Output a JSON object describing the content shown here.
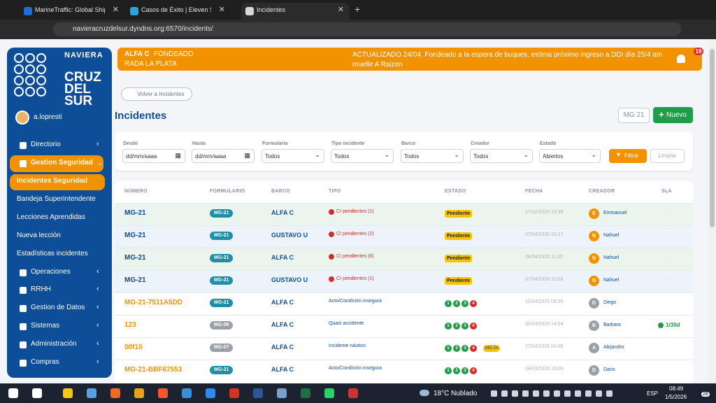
{
  "browser": {
    "tabs": [
      "MarineTraffic: Global Ship Track",
      "Casos de Éxito | Eleven Sistema",
      "Incidentes"
    ],
    "url": "navieracruzdelsur.dyndns.org:6570/incidents/"
  },
  "sidebar": {
    "brand": [
      "NAVIERA",
      "CRUZ",
      "DEL",
      "SUR"
    ],
    "user": "a.lopresti",
    "menu": [
      {
        "label": "Directorio",
        "kind": "section"
      },
      {
        "label": "Gestion Seguridad",
        "kind": "open"
      },
      {
        "label": "Incidentes Seguridad",
        "kind": "active"
      },
      {
        "label": "Bandeja Superintendente",
        "kind": "sub"
      },
      {
        "label": "Lecciones Aprendidas",
        "kind": "sub"
      },
      {
        "label": "Nueva lección",
        "kind": "sub"
      },
      {
        "label": "Estadísticas incidentes",
        "kind": "sub"
      },
      {
        "label": "Operaciones",
        "kind": "section"
      },
      {
        "label": "RRHH",
        "kind": "section"
      },
      {
        "label": "Gestion de Datos",
        "kind": "section"
      },
      {
        "label": "Sistemas",
        "kind": "section"
      },
      {
        "label": "Administración",
        "kind": "section"
      },
      {
        "label": "Compras",
        "kind": "section"
      }
    ]
  },
  "banner": {
    "ship": "ALFA C",
    "status": "FONDEADO",
    "location": "RADA LA PLATA",
    "message": "ACTUALIZADO 24/04, Fondeado a la espera de buques, estima próximo ingreso a DDI día 25/4 am muelle A Raizen",
    "badge": "19"
  },
  "page": {
    "back": "Volver a Incidentes",
    "title": "Incidentes",
    "form_button": "MG 21",
    "new_button": "Nuevo"
  },
  "filters": {
    "fields": [
      {
        "label": "Desde",
        "value": "dd/mm/aaaa"
      },
      {
        "label": "Hasta",
        "value": "dd/mm/aaaa"
      },
      {
        "label": "Formulario",
        "value": "Todos"
      },
      {
        "label": "Tipo incidente",
        "value": "Todos"
      },
      {
        "label": "Barco",
        "value": "Todos"
      },
      {
        "label": "Creador",
        "value": "Todos"
      },
      {
        "label": "Estado",
        "value": "Abiertos"
      }
    ],
    "filter_button": "Filtrar",
    "clear_button": "Limpiar"
  },
  "table": {
    "headers": [
      "NÚMERO",
      "FORMULARIO",
      "BARCO",
      "TIPO",
      "ESTADO",
      "FECHA",
      "CREADOR",
      "SLA"
    ],
    "rows": [
      {
        "number": "MG-21",
        "form": "MG-21",
        "ship": "ALFA C",
        "type": "CI pendientes (1)",
        "status": "Pendiente",
        "date": "17/12/2025 13:39",
        "initial": "E",
        "creator": "Emmanuel",
        "sla": "-"
      },
      {
        "number": "MG-21",
        "form": "MG-21",
        "ship": "GUSTAVO U",
        "type": "CI pendientes (2)",
        "status": "Pendiente",
        "date": "07/04/2026 10:17",
        "initial": "N",
        "creator": "Nahuel",
        "sla": "-"
      },
      {
        "number": "MG-21",
        "form": "MG-21",
        "ship": "ALFA C",
        "type": "CI pendientes (6)",
        "status": "Pendiente",
        "date": "08/04/2026 11:20",
        "initial": "N",
        "creator": "Nahuel",
        "sla": "-"
      },
      {
        "number": "MG-21",
        "form": "MG-21",
        "ship": "GUSTAVO U",
        "type": "CI pendientes (1)",
        "status": "Pendiente",
        "date": "07/04/2026 10:03",
        "initial": "N",
        "creator": "Nahuel",
        "sla": "-"
      },
      {
        "number": "MG-21-7511A5DD",
        "form": "MG-21",
        "ship": "ALFA C",
        "type": "Acto/Condición insegura",
        "steps": [
          "1",
          "2",
          "3",
          "4"
        ],
        "date": "15/04/2026 08:00",
        "initial": "D",
        "creator": "Diego",
        "sla": "-"
      },
      {
        "number": "123",
        "form": "MG-06",
        "ship": "ALFA C",
        "type": "Quasi accidente",
        "steps": [
          "1",
          "2",
          "3",
          "4"
        ],
        "date": "30/04/2026 14:54",
        "initial": "B",
        "creator": "Barbara",
        "sla": "1/30d"
      },
      {
        "number": "00f10",
        "form": "MG-07",
        "ship": "ALFA C",
        "type": "Incidente náutico",
        "steps": [
          "1",
          "2",
          "3",
          "4"
        ],
        "extra": "MG-24",
        "date": "27/04/2026 04:00",
        "initial": "A",
        "creator": "Alejandro",
        "sla": "-"
      },
      {
        "number": "MG-21-BBF67553",
        "form": "MG-21",
        "ship": "ALFA C",
        "type": "Acto/Condición insegura",
        "steps": [
          "1",
          "2",
          "3",
          "4"
        ],
        "date": "04/03/2026 16:00",
        "initial": "D",
        "creator": "Dario",
        "sla": "-"
      }
    ]
  },
  "taskbar": {
    "weather": "18°C Nublado",
    "lang": "ESP",
    "time": "08:49",
    "date": "1/5/2026",
    "notifications": "28"
  }
}
